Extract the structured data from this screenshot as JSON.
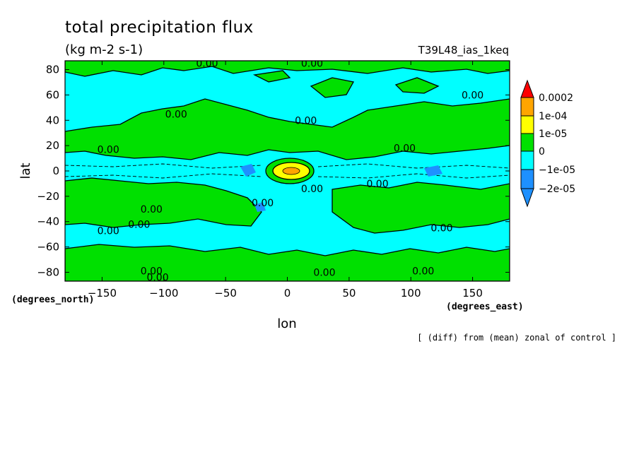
{
  "chart_data": {
    "type": "contour",
    "title": "total precipitation flux",
    "units": "(kg m-2 s-1)",
    "run_label": "T39L48_ias_1keq",
    "xlabel": "lon",
    "ylabel": "lat",
    "x_units": "(degrees_east)",
    "y_units": "(degrees_north)",
    "footnote": "[ (diff) from (mean) zonal of control ]",
    "xlim": [
      -180,
      180
    ],
    "ylim": [
      -87,
      87
    ],
    "x_ticks": [
      -150,
      -100,
      -50,
      0,
      50,
      100,
      150
    ],
    "y_ticks": [
      -80,
      -60,
      -40,
      -20,
      0,
      20,
      40,
      60,
      80
    ],
    "colorbar": {
      "labels": [
        "0.0002",
        "1e-04",
        "1e-05",
        "0",
        "−1e-05",
        "−2e-05"
      ],
      "colors": [
        "#ff0000",
        "#ffa500",
        "#ffff00",
        "#00e000",
        "#00ffff",
        "#1e90ff",
        "#0000ff"
      ]
    },
    "contour_label": "0.00",
    "contour_label_positions": [
      [
        -65,
        85
      ],
      [
        20,
        85
      ],
      [
        150,
        60
      ],
      [
        -90,
        45
      ],
      [
        15,
        40
      ],
      [
        -145,
        17
      ],
      [
        95,
        18
      ],
      [
        -110,
        -30
      ],
      [
        -145,
        -47
      ],
      [
        -120,
        -42
      ],
      [
        -20,
        -25
      ],
      [
        20,
        -14
      ],
      [
        73,
        -10
      ],
      [
        125,
        -45
      ],
      [
        -110,
        -79
      ],
      [
        -105,
        -84
      ],
      [
        30,
        -80
      ],
      [
        110,
        -79
      ]
    ]
  }
}
